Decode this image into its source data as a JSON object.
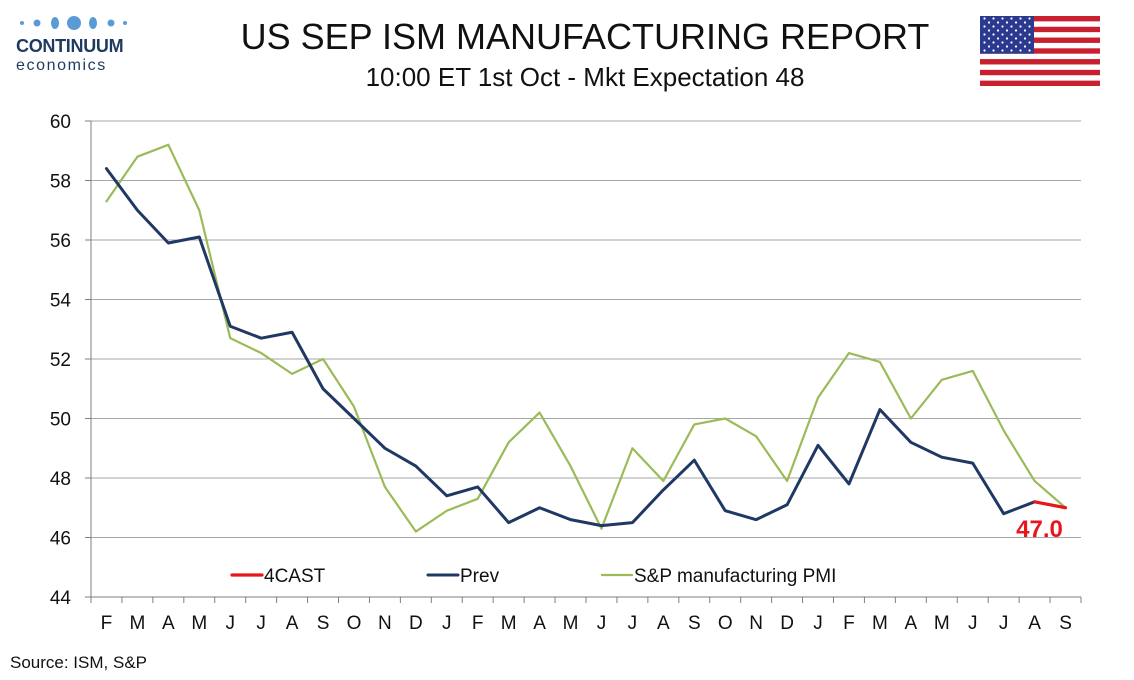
{
  "logo": {
    "name": "CONTINUUM",
    "sub": "economics"
  },
  "header": {
    "title": "US SEP ISM MANUFACTURING REPORT",
    "subtitle": "10:00 ET 1st Oct - Mkt Expectation 48"
  },
  "flag_icon": "us-flag-icon",
  "source": "Source: ISM, S&P",
  "colors": {
    "forecast": "#e8151b",
    "prev": "#1f3864",
    "sp": "#9bbb59",
    "grid": "#a6a6a6"
  },
  "chart_data": {
    "type": "line",
    "categories": [
      "F",
      "M",
      "A",
      "M",
      "J",
      "J",
      "A",
      "S",
      "O",
      "N",
      "D",
      "J",
      "F",
      "M",
      "A",
      "M",
      "J",
      "J",
      "A",
      "S",
      "O",
      "N",
      "D",
      "J",
      "F",
      "M",
      "A",
      "M",
      "J",
      "J",
      "A",
      "S"
    ],
    "ylim": [
      44,
      60
    ],
    "yticks": [
      44,
      46,
      48,
      50,
      52,
      54,
      56,
      58,
      60
    ],
    "grid": true,
    "legend_position": "bottom",
    "series": [
      {
        "name": "4CAST",
        "values": [
          null,
          null,
          null,
          null,
          null,
          null,
          null,
          null,
          null,
          null,
          null,
          null,
          null,
          null,
          null,
          null,
          null,
          null,
          null,
          null,
          null,
          null,
          null,
          null,
          null,
          null,
          null,
          null,
          null,
          null,
          47.2,
          47.0
        ]
      },
      {
        "name": "Prev",
        "values": [
          58.4,
          57.0,
          55.9,
          56.1,
          53.1,
          52.7,
          52.9,
          51.0,
          50.0,
          49.0,
          48.4,
          47.4,
          47.7,
          46.5,
          47.0,
          46.6,
          46.4,
          46.5,
          47.6,
          48.6,
          46.9,
          46.6,
          47.1,
          49.1,
          47.8,
          50.3,
          49.2,
          48.7,
          48.5,
          46.8,
          47.2,
          null
        ]
      },
      {
        "name": "S&P manufacturing PMI",
        "values": [
          57.3,
          58.8,
          59.2,
          57.0,
          52.7,
          52.2,
          51.5,
          52.0,
          50.4,
          47.7,
          46.2,
          46.9,
          47.3,
          49.2,
          50.2,
          48.4,
          46.3,
          49.0,
          47.9,
          49.8,
          50.0,
          49.4,
          47.9,
          50.7,
          52.2,
          51.9,
          50.0,
          51.3,
          51.6,
          49.6,
          47.9,
          47.0
        ]
      }
    ],
    "annotation": {
      "text": "47.0",
      "category_index": 31,
      "value": 47.0
    }
  }
}
